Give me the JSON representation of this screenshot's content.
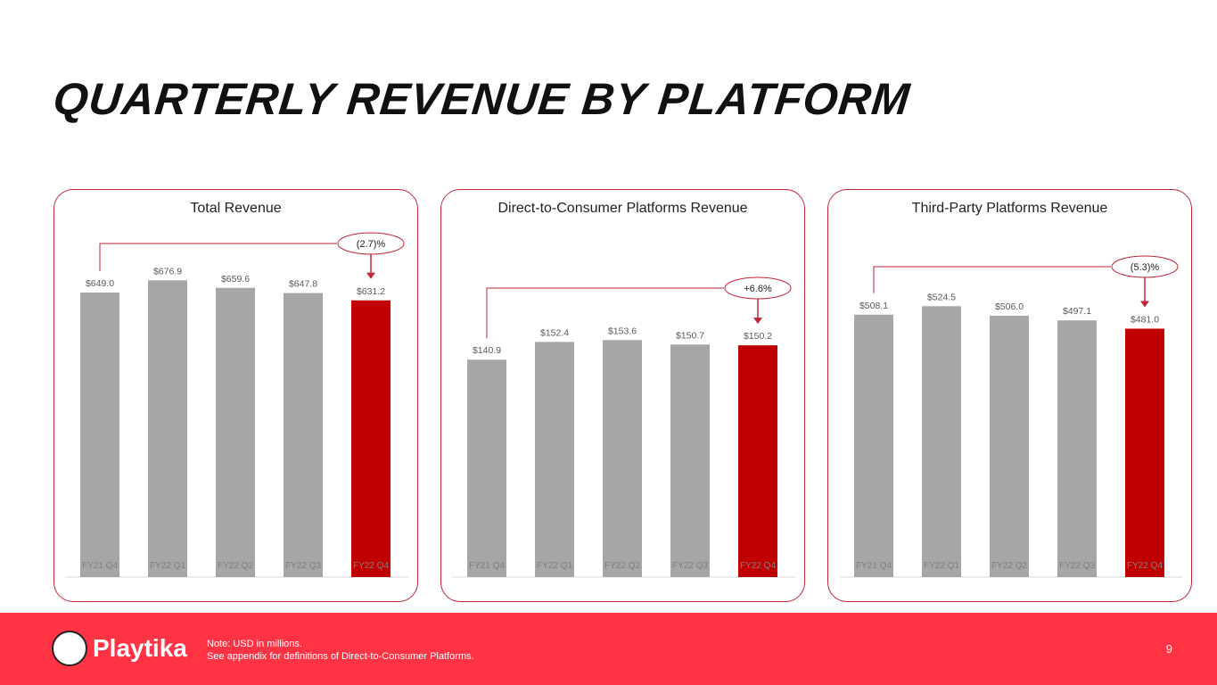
{
  "title": "QUARTERLY REVENUE BY PLATFORM",
  "chart_data": [
    {
      "type": "bar",
      "title": "Total Revenue",
      "categories": [
        "FY21 Q4",
        "FY22 Q1",
        "FY22 Q2",
        "FY22 Q3",
        "FY22 Q4"
      ],
      "values": [
        649.0,
        676.9,
        659.6,
        647.8,
        631.2
      ],
      "labels": [
        "$649.0",
        "$676.9",
        "$659.6",
        "$647.8",
        "$631.2"
      ],
      "change": "(2.7)%",
      "highlight_color": "#c00000",
      "bar_color": "#a6a6a6"
    },
    {
      "type": "bar",
      "title": "Direct-to-Consumer Platforms Revenue",
      "categories": [
        "FY21 Q4",
        "FY22 Q1",
        "FY22 Q2",
        "FY22 Q3",
        "FY22 Q4"
      ],
      "values": [
        140.9,
        152.4,
        153.6,
        150.7,
        150.2
      ],
      "labels": [
        "$140.9",
        "$152.4",
        "$153.6",
        "$150.7",
        "$150.2"
      ],
      "change": "+6.6%",
      "highlight_color": "#c00000",
      "bar_color": "#a6a6a6"
    },
    {
      "type": "bar",
      "title": "Third-Party Platforms Revenue",
      "categories": [
        "FY21 Q4",
        "FY22 Q1",
        "FY22 Q2",
        "FY22 Q3",
        "FY22 Q4"
      ],
      "values": [
        508.1,
        524.5,
        506.0,
        497.1,
        481.0
      ],
      "labels": [
        "$508.1",
        "$524.5",
        "$506.0",
        "$497.1",
        "$481.0"
      ],
      "change": "(5.3)%",
      "highlight_color": "#c00000",
      "bar_color": "#a6a6a6"
    }
  ],
  "footer": {
    "brand": "Playtika",
    "note1": "Note:  USD in millions.",
    "note2": "See appendix for definitions of Direct-to-Consumer Platforms.",
    "page": "9"
  }
}
